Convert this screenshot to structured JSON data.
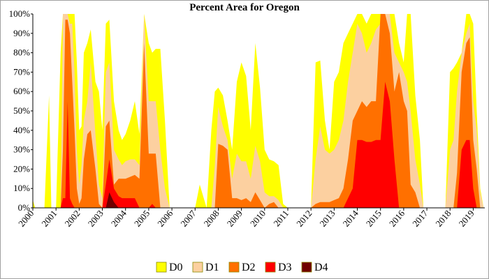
{
  "chart_data": {
    "type": "area",
    "title": "Percent Area for Oregon",
    "xlabel": "",
    "ylabel": "",
    "xlim": [
      2000,
      2019.5
    ],
    "ylim": [
      0,
      100
    ],
    "y_ticks": [
      0,
      10,
      20,
      30,
      40,
      50,
      60,
      70,
      80,
      90,
      100
    ],
    "y_tick_labels": [
      "0%",
      "10%",
      "20%",
      "30%",
      "40%",
      "50%",
      "60%",
      "70%",
      "80%",
      "90%",
      "100%"
    ],
    "x_tick_labels": [
      "2000",
      "2001",
      "2002",
      "2003",
      "2004",
      "2005",
      "2006",
      "2007",
      "2008",
      "2009",
      "2010",
      "2011",
      "2012",
      "2013",
      "2014",
      "2015",
      "2016",
      "2017",
      "2018",
      "2019"
    ],
    "legend_position": "bottom-center",
    "colors": {
      "D0": "#ffff00",
      "D1": "#fcd0a0",
      "D2": "#ff7000",
      "D3": "#ff0000",
      "D4": "#700000"
    },
    "x": [
      2000.0,
      2000.1,
      2000.3,
      2000.5,
      2000.7,
      2000.8,
      2001.0,
      2001.2,
      2001.3,
      2001.4,
      2001.5,
      2001.6,
      2001.7,
      2001.8,
      2001.9,
      2002.0,
      2002.1,
      2002.2,
      2002.35,
      2002.5,
      2002.7,
      2002.85,
      2003.0,
      2003.15,
      2003.3,
      2003.5,
      2003.7,
      2003.85,
      2004.0,
      2004.2,
      2004.4,
      2004.6,
      2004.8,
      2005.0,
      2005.15,
      2005.3,
      2005.5,
      2005.7,
      2005.9,
      2006.05,
      2006.2,
      2006.5,
      2006.8,
      2007.0,
      2007.2,
      2007.5,
      2007.7,
      2007.85,
      2008.0,
      2008.2,
      2008.4,
      2008.6,
      2008.8,
      2009.0,
      2009.2,
      2009.4,
      2009.6,
      2009.8,
      2010.0,
      2010.2,
      2010.4,
      2010.6,
      2010.8,
      2011.0,
      2011.2,
      2011.5,
      2011.8,
      2012.0,
      2012.2,
      2012.4,
      2012.6,
      2012.8,
      2013.0,
      2013.2,
      2013.4,
      2013.6,
      2013.8,
      2014.0,
      2014.2,
      2014.4,
      2014.6,
      2014.8,
      2015.0,
      2015.2,
      2015.4,
      2015.6,
      2015.8,
      2016.0,
      2016.15,
      2016.3,
      2016.5,
      2016.7,
      2016.85,
      2017.0,
      2017.2,
      2017.4,
      2017.6,
      2017.8,
      2018.0,
      2018.15,
      2018.3,
      2018.5,
      2018.7,
      2018.85,
      2019.0,
      2019.15,
      2019.3,
      2019.45
    ],
    "series": [
      {
        "name": "D0",
        "values": [
          4,
          0,
          0,
          0,
          58,
          0,
          0,
          80,
          100,
          100,
          100,
          100,
          100,
          100,
          75,
          40,
          42,
          80,
          85,
          92,
          65,
          60,
          40,
          95,
          97,
          55,
          40,
          35,
          38,
          45,
          55,
          38,
          100,
          85,
          80,
          82,
          82,
          45,
          0,
          0,
          0,
          0,
          0,
          0,
          12,
          0,
          40,
          60,
          62,
          58,
          45,
          30,
          65,
          75,
          68,
          40,
          85,
          62,
          30,
          25,
          24,
          22,
          2,
          0,
          0,
          0,
          0,
          0,
          75,
          76,
          45,
          30,
          65,
          70,
          85,
          90,
          95,
          100,
          100,
          95,
          100,
          100,
          100,
          100,
          100,
          100,
          85,
          75,
          100,
          100,
          58,
          35,
          0,
          0,
          0,
          0,
          0,
          0,
          70,
          72,
          75,
          80,
          100,
          100,
          95,
          50,
          10,
          0
        ]
      },
      {
        "name": "D1",
        "values": [
          0,
          0,
          0,
          0,
          0,
          0,
          0,
          0,
          100,
          100,
          100,
          95,
          95,
          70,
          30,
          12,
          22,
          45,
          55,
          75,
          38,
          12,
          5,
          70,
          75,
          30,
          25,
          22,
          24,
          25,
          25,
          22,
          100,
          55,
          55,
          55,
          30,
          10,
          0,
          0,
          0,
          0,
          0,
          0,
          0,
          0,
          0,
          22,
          52,
          42,
          35,
          15,
          28,
          24,
          24,
          15,
          32,
          24,
          8,
          6,
          6,
          4,
          0,
          0,
          0,
          0,
          0,
          0,
          25,
          42,
          30,
          28,
          30,
          35,
          45,
          65,
          80,
          95,
          90,
          80,
          85,
          92,
          95,
          100,
          100,
          80,
          75,
          70,
          65,
          50,
          25,
          12,
          0,
          0,
          0,
          0,
          0,
          0,
          30,
          35,
          60,
          80,
          90,
          95,
          55,
          40,
          8,
          0
        ]
      },
      {
        "name": "D2",
        "values": [
          0,
          0,
          0,
          0,
          0,
          0,
          0,
          0,
          30,
          97,
          97,
          90,
          65,
          40,
          10,
          2,
          5,
          25,
          38,
          40,
          20,
          2,
          0,
          42,
          45,
          12,
          15,
          15,
          15,
          16,
          17,
          15,
          85,
          28,
          28,
          28,
          0,
          0,
          0,
          0,
          0,
          0,
          0,
          0,
          0,
          0,
          0,
          0,
          33,
          32,
          30,
          5,
          5,
          4,
          5,
          3,
          8,
          4,
          0,
          2,
          3,
          0,
          0,
          0,
          0,
          0,
          0,
          0,
          2,
          3,
          3,
          3,
          4,
          5,
          10,
          25,
          45,
          50,
          55,
          52,
          55,
          55,
          100,
          100,
          90,
          60,
          70,
          55,
          50,
          12,
          8,
          0,
          0,
          0,
          0,
          0,
          0,
          0,
          0,
          0,
          18,
          70,
          85,
          88,
          35,
          20,
          0,
          0
        ]
      },
      {
        "name": "D3",
        "values": [
          0,
          0,
          0,
          0,
          0,
          0,
          0,
          0,
          5,
          5,
          55,
          5,
          2,
          0,
          0,
          0,
          0,
          0,
          0,
          0,
          0,
          0,
          0,
          12,
          25,
          10,
          6,
          5,
          5,
          5,
          5,
          0,
          0,
          0,
          2,
          0,
          0,
          0,
          0,
          0,
          0,
          0,
          0,
          0,
          0,
          0,
          0,
          0,
          0,
          0,
          0,
          0,
          0,
          0,
          0,
          0,
          0,
          0,
          0,
          0,
          0,
          0,
          0,
          0,
          0,
          0,
          0,
          0,
          0,
          0,
          0,
          0,
          0,
          0,
          0,
          5,
          10,
          35,
          35,
          34,
          34,
          35,
          35,
          65,
          55,
          25,
          0,
          0,
          0,
          0,
          0,
          0,
          0,
          0,
          0,
          0,
          0,
          0,
          0,
          0,
          0,
          30,
          35,
          35,
          10,
          0,
          0,
          0
        ]
      },
      {
        "name": "D4",
        "values": [
          0,
          0,
          0,
          0,
          0,
          0,
          0,
          0,
          0,
          0,
          0,
          0,
          0,
          0,
          0,
          0,
          0,
          0,
          0,
          0,
          0,
          0,
          0,
          0,
          8,
          3,
          0,
          0,
          0,
          0,
          0,
          0,
          0,
          0,
          0,
          0,
          0,
          0,
          0,
          0,
          0,
          0,
          0,
          0,
          0,
          0,
          0,
          0,
          0,
          0,
          0,
          0,
          0,
          0,
          0,
          0,
          0,
          0,
          0,
          0,
          0,
          0,
          0,
          0,
          0,
          0,
          0,
          0,
          0,
          0,
          0,
          0,
          0,
          0,
          0,
          0,
          0,
          0,
          0,
          0,
          0,
          0,
          0,
          0,
          0,
          0,
          0,
          0,
          0,
          0,
          0,
          0,
          0,
          0,
          0,
          0,
          0,
          0,
          0,
          0,
          0,
          0,
          0,
          0,
          0,
          0,
          0,
          0
        ]
      }
    ]
  }
}
